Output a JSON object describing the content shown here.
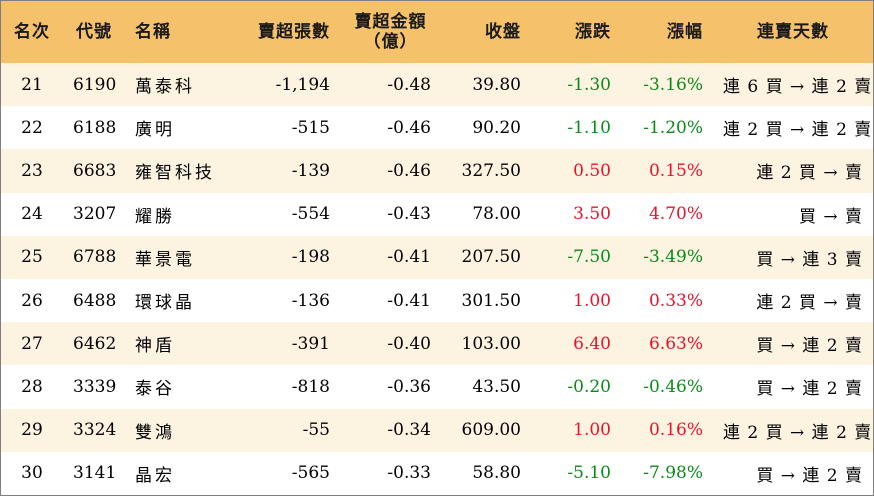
{
  "colors": {
    "header_bg": "#f5c26b",
    "row_alt_bg": "#fdf3e1",
    "up": "#e8122a",
    "down": "#0b8a1a"
  },
  "headers": {
    "rank": "名次",
    "code": "代號",
    "name": "名稱",
    "net_sell_lots": "賣超張數",
    "net_sell_amount_line1": "賣超金額",
    "net_sell_amount_line2": "（億）",
    "close": "收盤",
    "change": "漲跌",
    "change_pct": "漲幅",
    "streak": "連賣天數"
  },
  "rows": [
    {
      "rank": "21",
      "code": "6190",
      "name": "萬泰科",
      "lots": "-1,194",
      "amount": "-0.48",
      "close": "39.80",
      "change": "-1.30",
      "pct": "-3.16%",
      "streak": "連 6 買 → 連 2 賣",
      "dir": "down"
    },
    {
      "rank": "22",
      "code": "6188",
      "name": "廣明",
      "lots": "-515",
      "amount": "-0.46",
      "close": "90.20",
      "change": "-1.10",
      "pct": "-1.20%",
      "streak": "連 2 買 → 連 2 賣",
      "dir": "down"
    },
    {
      "rank": "23",
      "code": "6683",
      "name": "雍智科技",
      "lots": "-139",
      "amount": "-0.46",
      "close": "327.50",
      "change": "0.50",
      "pct": "0.15%",
      "streak": "連 2 買 → 賣",
      "dir": "up"
    },
    {
      "rank": "24",
      "code": "3207",
      "name": "耀勝",
      "lots": "-554",
      "amount": "-0.43",
      "close": "78.00",
      "change": "3.50",
      "pct": "4.70%",
      "streak": "買 → 賣",
      "dir": "up"
    },
    {
      "rank": "25",
      "code": "6788",
      "name": "華景電",
      "lots": "-198",
      "amount": "-0.41",
      "close": "207.50",
      "change": "-7.50",
      "pct": "-3.49%",
      "streak": "買 → 連 3 賣",
      "dir": "down"
    },
    {
      "rank": "26",
      "code": "6488",
      "name": "環球晶",
      "lots": "-136",
      "amount": "-0.41",
      "close": "301.50",
      "change": "1.00",
      "pct": "0.33%",
      "streak": "連 2 買 → 賣",
      "dir": "up"
    },
    {
      "rank": "27",
      "code": "6462",
      "name": "神盾",
      "lots": "-391",
      "amount": "-0.40",
      "close": "103.00",
      "change": "6.40",
      "pct": "6.63%",
      "streak": "買 → 連 2 賣",
      "dir": "up"
    },
    {
      "rank": "28",
      "code": "3339",
      "name": "泰谷",
      "lots": "-818",
      "amount": "-0.36",
      "close": "43.50",
      "change": "-0.20",
      "pct": "-0.46%",
      "streak": "買 → 連 2 賣",
      "dir": "down"
    },
    {
      "rank": "29",
      "code": "3324",
      "name": "雙鴻",
      "lots": "-55",
      "amount": "-0.34",
      "close": "609.00",
      "change": "1.00",
      "pct": "0.16%",
      "streak": "連 2 買 → 連 2 賣",
      "dir": "up"
    },
    {
      "rank": "30",
      "code": "3141",
      "name": "晶宏",
      "lots": "-565",
      "amount": "-0.33",
      "close": "58.80",
      "change": "-5.10",
      "pct": "-7.98%",
      "streak": "買 → 連 2 賣",
      "dir": "down"
    }
  ]
}
